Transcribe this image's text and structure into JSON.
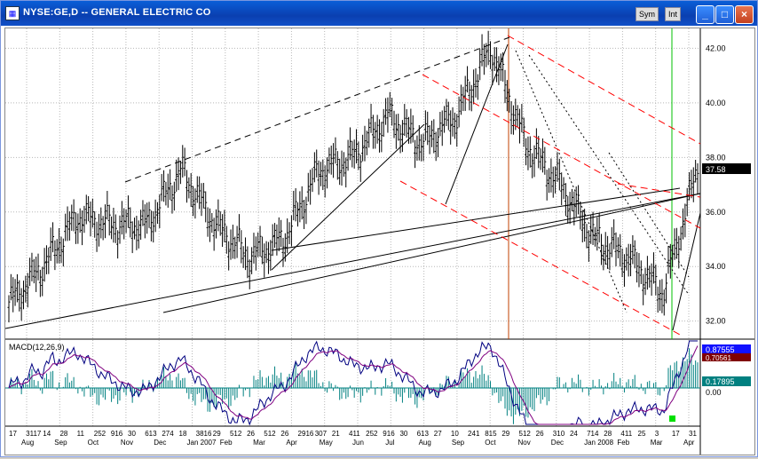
{
  "window": {
    "title": "NYSE:GE,D -- GENERAL ELECTRIC CO",
    "sym_button": "Sym",
    "int_button": "Int",
    "minimize": "_",
    "maximize": "□",
    "close": "×"
  },
  "price_axis": {
    "ticks": [
      "42.00",
      "40.00",
      "38.00",
      "36.00",
      "34.00",
      "32.00"
    ],
    "last_price": "37.58"
  },
  "macd": {
    "label": "MACD(12,26,9)",
    "value1": "0.87555",
    "value2": "0.70561",
    "value3": "0.17895",
    "zero_tick": "0.00"
  },
  "x_axis": {
    "days": [
      "17",
      "3117",
      "14",
      "28",
      "11",
      "252",
      "916",
      "30",
      "613",
      "274",
      "18",
      "3816",
      "29",
      "512",
      "26",
      "512",
      "26",
      "2916",
      "307",
      "21",
      "411",
      "252",
      "916",
      "30",
      "613",
      "27",
      "10",
      "241",
      "815",
      "29",
      "512",
      "26",
      "310",
      "24",
      "714",
      "28",
      "411",
      "25",
      "3",
      "17",
      "31"
    ],
    "months": [
      "Aug",
      "Sep",
      "Oct",
      "Nov",
      "Dec",
      "Jan 2007",
      "Feb",
      "Mar",
      "Apr",
      "May",
      "Jun",
      "Jul",
      "Aug",
      "Sep",
      "Oct",
      "Nov",
      "Dec",
      "Jan 2008",
      "Feb",
      "Mar",
      "Apr"
    ]
  },
  "chart_data": {
    "type": "candlestick",
    "title": "NYSE:GE,D -- GENERAL ELECTRIC CO",
    "ylim": [
      31.5,
      42.6
    ],
    "approx_path": [
      {
        "x": "Aug 2006",
        "y": 32.6
      },
      {
        "x": "Sep 2006",
        "y": 34.0
      },
      {
        "x": "Oct 2006",
        "y": 35.8
      },
      {
        "x": "Nov 2006",
        "y": 35.5
      },
      {
        "x": "Dec 2006",
        "y": 35.5
      },
      {
        "x": "Jan 2007",
        "y": 37.5
      },
      {
        "x": "Feb 2007",
        "y": 35.5
      },
      {
        "x": "Mar 2007",
        "y": 34.3
      },
      {
        "x": "Apr 2007",
        "y": 35.0
      },
      {
        "x": "May 2007",
        "y": 37.5
      },
      {
        "x": "Jun 2007",
        "y": 38.0
      },
      {
        "x": "Jul 2007",
        "y": 39.5
      },
      {
        "x": "Aug 2007",
        "y": 38.5
      },
      {
        "x": "Sep 2007",
        "y": 39.5
      },
      {
        "x": "Oct 2007",
        "y": 42.0
      },
      {
        "x": "Nov 2007",
        "y": 38.5
      },
      {
        "x": "Dec 2007",
        "y": 37.0
      },
      {
        "x": "Jan 2008",
        "y": 35.0
      },
      {
        "x": "Feb 2008",
        "y": 34.3
      },
      {
        "x": "Mar 2008",
        "y": 33.0
      },
      {
        "x": "Apr 2008",
        "y": 37.58
      }
    ],
    "colors": {
      "price": "#000000",
      "trend_dashed": "#000000",
      "channel": "#ff0000",
      "macd": "#000080",
      "signal": "#800080",
      "hist": "#008080",
      "highlight_box": "#1010ff",
      "vline_green": "#00c000",
      "vline_red": "#c04000"
    }
  }
}
